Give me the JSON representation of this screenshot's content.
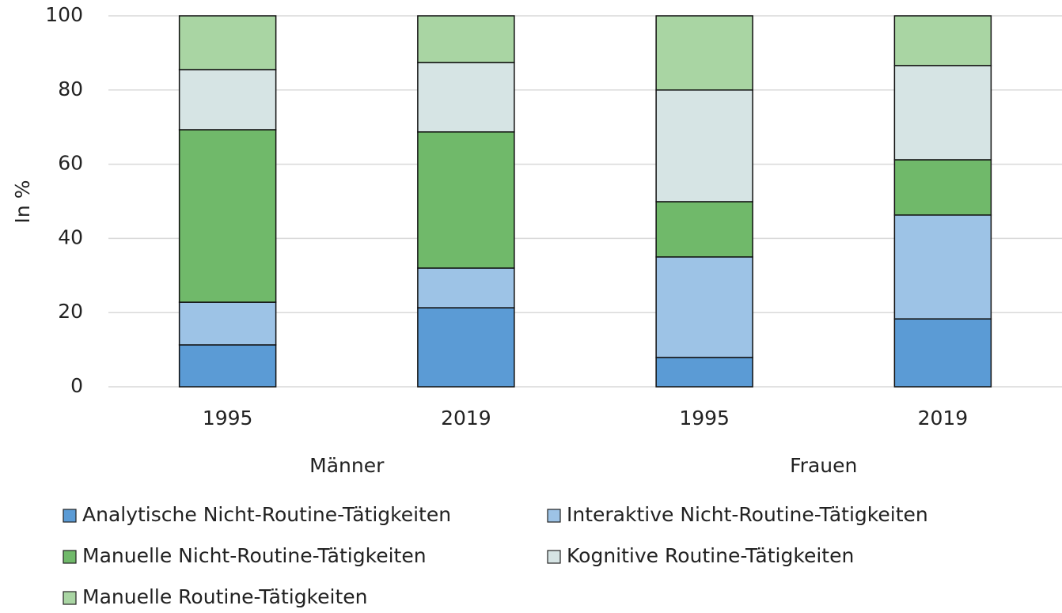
{
  "chart_data": {
    "type": "stacked_bar",
    "y_label": "In %",
    "categories": [
      "1995",
      "2019",
      "1995",
      "2019"
    ],
    "groups": [
      "Männer",
      "Frauen"
    ],
    "series": [
      {
        "name": "Analytische Nicht-Routine-Tätigkeiten",
        "color": "#5b9bd5",
        "values": [
          11.3,
          21.3,
          7.9,
          18.3
        ]
      },
      {
        "name": "Interaktive Nicht-Routine-Tätigkeiten",
        "color": "#9dc3e6",
        "values": [
          11.5,
          10.7,
          27.1,
          28.0
        ]
      },
      {
        "name": "Manuelle Nicht-Routine-Tätigkeiten",
        "color": "#70b96a",
        "values": [
          46.5,
          36.7,
          14.9,
          14.9
        ]
      },
      {
        "name": "Kognitive Routine-Tätigkeiten",
        "color": "#d6e4e4",
        "values": [
          16.2,
          18.7,
          30.1,
          25.4
        ]
      },
      {
        "name": "Manuelle Routine-Tätigkeiten",
        "color": "#a9d5a3",
        "values": [
          14.5,
          12.6,
          20.0,
          13.4
        ]
      }
    ],
    "ylim": [
      0,
      100
    ],
    "yticks": [
      0,
      20,
      40,
      60,
      80,
      100
    ],
    "grid": true
  }
}
